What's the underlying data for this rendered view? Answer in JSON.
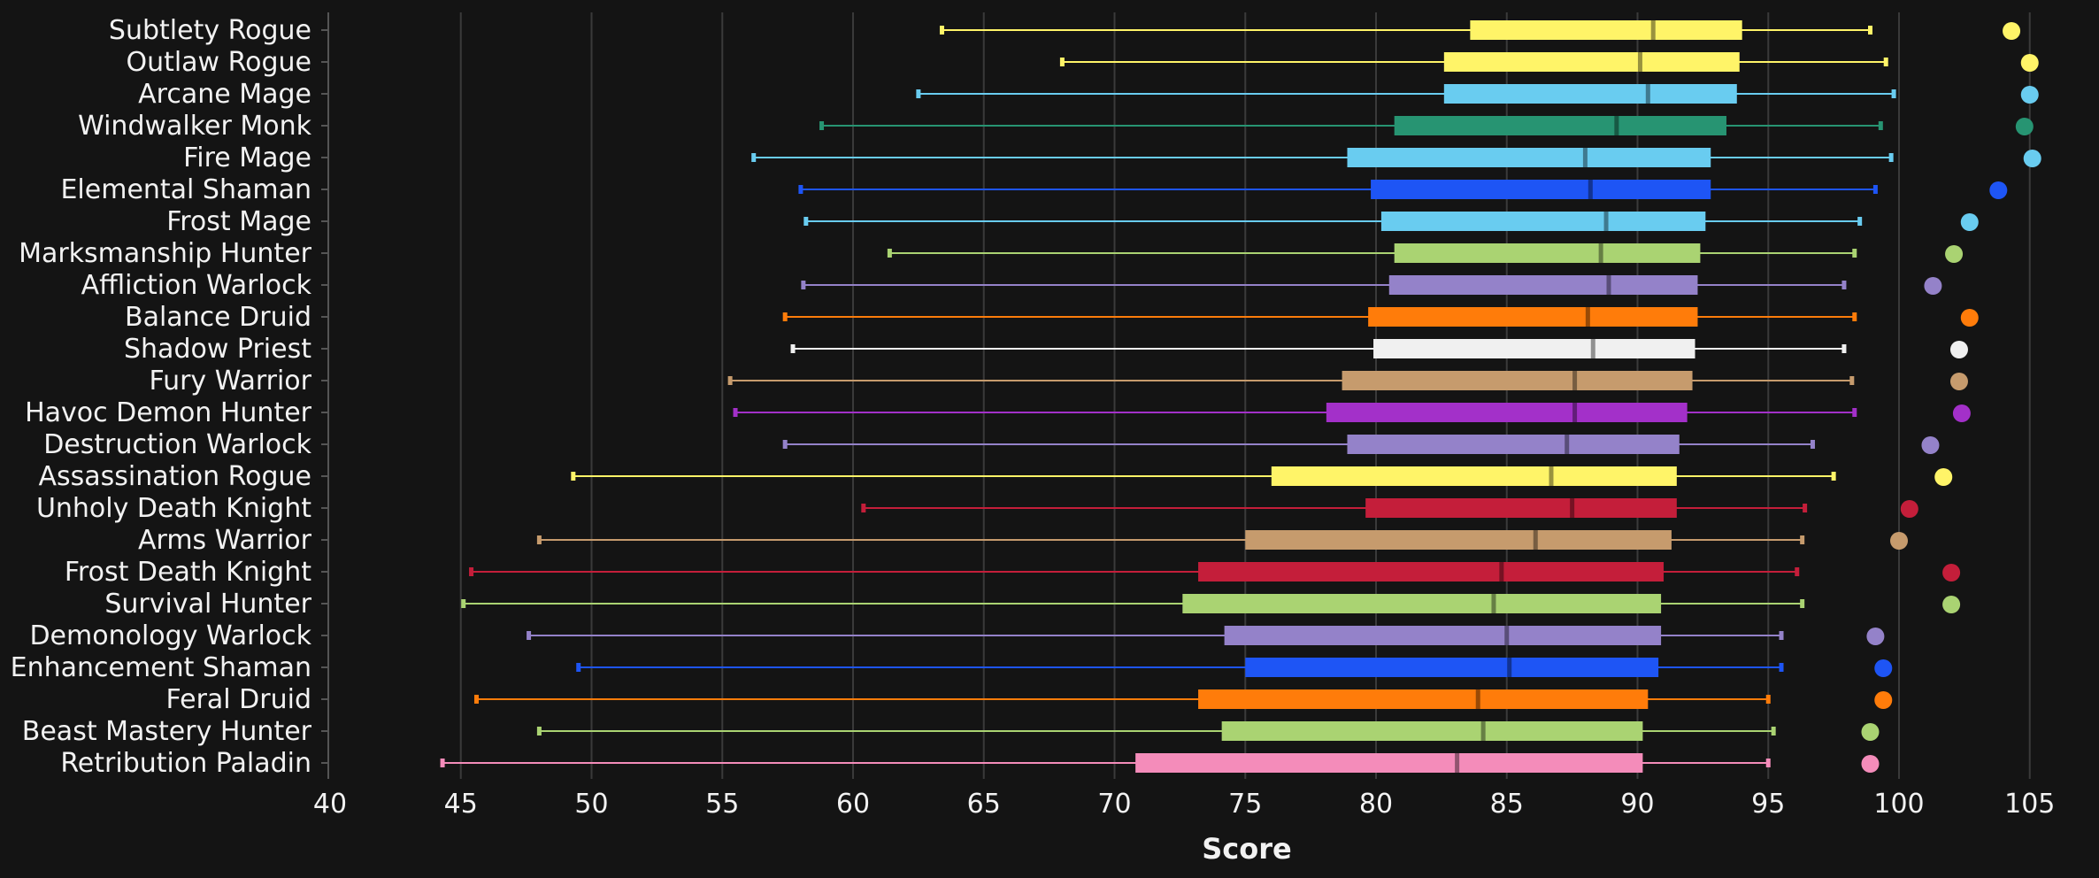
{
  "chart_data": {
    "type": "boxplot",
    "xlabel": "Score",
    "xlim": [
      40,
      106
    ],
    "xticks": [
      40,
      45,
      50,
      55,
      60,
      65,
      70,
      75,
      80,
      85,
      90,
      95,
      100,
      105
    ],
    "grid": true,
    "series": [
      {
        "name": "Subtlety Rogue",
        "color": "#FFF468",
        "min": 63.4,
        "q1": 83.6,
        "median": 90.6,
        "q3": 94.0,
        "max": 98.9,
        "point": 104.3
      },
      {
        "name": "Outlaw Rogue",
        "color": "#FFF468",
        "min": 68.0,
        "q1": 82.6,
        "median": 90.1,
        "q3": 93.9,
        "max": 99.5,
        "point": 105.0
      },
      {
        "name": "Arcane Mage",
        "color": "#69CCF0",
        "min": 62.5,
        "q1": 82.6,
        "median": 90.4,
        "q3": 93.8,
        "max": 99.8,
        "point": 105.0
      },
      {
        "name": "Windwalker Monk",
        "color": "#279472",
        "min": 58.8,
        "q1": 80.7,
        "median": 89.2,
        "q3": 93.4,
        "max": 99.3,
        "point": 104.8
      },
      {
        "name": "Fire Mage",
        "color": "#69CCF0",
        "min": 56.2,
        "q1": 78.9,
        "median": 88.0,
        "q3": 92.8,
        "max": 99.7,
        "point": 105.1
      },
      {
        "name": "Elemental Shaman",
        "color": "#1E55F5",
        "min": 58.0,
        "q1": 79.8,
        "median": 88.2,
        "q3": 92.8,
        "max": 99.1,
        "point": 103.8
      },
      {
        "name": "Frost Mage",
        "color": "#69CCF0",
        "min": 58.2,
        "q1": 80.2,
        "median": 88.8,
        "q3": 92.6,
        "max": 98.5,
        "point": 102.7
      },
      {
        "name": "Marksmanship Hunter",
        "color": "#AAD372",
        "min": 61.4,
        "q1": 80.7,
        "median": 88.6,
        "q3": 92.4,
        "max": 98.3,
        "point": 102.1
      },
      {
        "name": "Affliction Warlock",
        "color": "#9482C9",
        "min": 58.1,
        "q1": 80.5,
        "median": 88.9,
        "q3": 92.3,
        "max": 97.9,
        "point": 101.3
      },
      {
        "name": "Balance Druid",
        "color": "#FF7C0A",
        "min": 57.4,
        "q1": 79.7,
        "median": 88.1,
        "q3": 92.3,
        "max": 98.3,
        "point": 102.7
      },
      {
        "name": "Shadow Priest",
        "color": "#F0F0F0",
        "min": 57.7,
        "q1": 79.9,
        "median": 88.3,
        "q3": 92.2,
        "max": 97.9,
        "point": 102.3
      },
      {
        "name": "Fury Warrior",
        "color": "#C69B6D",
        "min": 55.3,
        "q1": 78.7,
        "median": 87.6,
        "q3": 92.1,
        "max": 98.2,
        "point": 102.3
      },
      {
        "name": "Havoc Demon Hunter",
        "color": "#A330C9",
        "min": 55.5,
        "q1": 78.1,
        "median": 87.6,
        "q3": 91.9,
        "max": 98.3,
        "point": 102.4
      },
      {
        "name": "Destruction Warlock",
        "color": "#9482C9",
        "min": 57.4,
        "q1": 78.9,
        "median": 87.3,
        "q3": 91.6,
        "max": 96.7,
        "point": 101.2
      },
      {
        "name": "Assassination Rogue",
        "color": "#FFF468",
        "min": 49.3,
        "q1": 76.0,
        "median": 86.7,
        "q3": 91.5,
        "max": 97.5,
        "point": 101.7
      },
      {
        "name": "Unholy Death Knight",
        "color": "#C41E3A",
        "min": 60.4,
        "q1": 79.6,
        "median": 87.5,
        "q3": 91.5,
        "max": 96.4,
        "point": 100.4
      },
      {
        "name": "Arms Warrior",
        "color": "#C69B6D",
        "min": 48.0,
        "q1": 75.0,
        "median": 86.1,
        "q3": 91.3,
        "max": 96.3,
        "point": 100.0
      },
      {
        "name": "Frost Death Knight",
        "color": "#C41E3A",
        "min": 45.4,
        "q1": 73.2,
        "median": 84.8,
        "q3": 91.0,
        "max": 96.1,
        "point": 102.0
      },
      {
        "name": "Survival Hunter",
        "color": "#AAD372",
        "min": 45.1,
        "q1": 72.6,
        "median": 84.5,
        "q3": 90.9,
        "max": 96.3,
        "point": 102.0
      },
      {
        "name": "Demonology Warlock",
        "color": "#9482C9",
        "min": 47.6,
        "q1": 74.2,
        "median": 85.0,
        "q3": 90.9,
        "max": 95.5,
        "point": 99.1
      },
      {
        "name": "Enhancement Shaman",
        "color": "#1E55F5",
        "min": 49.5,
        "q1": 75.0,
        "median": 85.1,
        "q3": 90.8,
        "max": 95.5,
        "point": 99.4
      },
      {
        "name": "Feral Druid",
        "color": "#FF7C0A",
        "min": 45.6,
        "q1": 73.2,
        "median": 83.9,
        "q3": 90.4,
        "max": 95.0,
        "point": 99.4
      },
      {
        "name": "Beast Mastery Hunter",
        "color": "#AAD372",
        "min": 48.0,
        "q1": 74.1,
        "median": 84.1,
        "q3": 90.2,
        "max": 95.2,
        "point": 98.9
      },
      {
        "name": "Retribution Paladin",
        "color": "#F48CBA",
        "min": 44.3,
        "q1": 70.8,
        "median": 83.1,
        "q3": 90.2,
        "max": 95.0,
        "point": 98.9
      }
    ]
  }
}
